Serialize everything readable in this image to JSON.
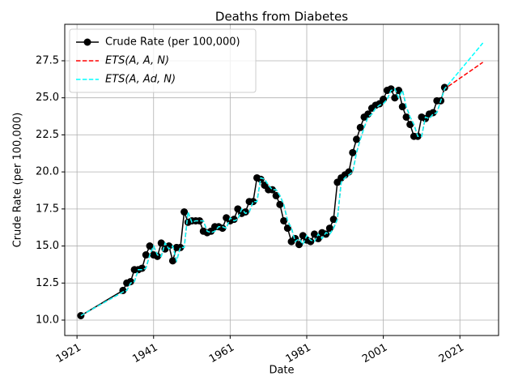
{
  "chart_data": {
    "type": "line",
    "title": "Deaths from Diabetes",
    "x_label": "Date",
    "y_label": "Crude Rate (per 100,000)",
    "x": [
      1922,
      1933,
      1934,
      1935,
      1936,
      1937,
      1938,
      1939,
      1940,
      1941,
      1942,
      1943,
      1944,
      1945,
      1946,
      1947,
      1948,
      1949,
      1950,
      1951,
      1952,
      1953,
      1954,
      1955,
      1956,
      1957,
      1958,
      1959,
      1960,
      1961,
      1962,
      1963,
      1964,
      1965,
      1966,
      1967,
      1968,
      1969,
      1970,
      1971,
      1972,
      1973,
      1974,
      1975,
      1976,
      1977,
      1978,
      1979,
      1980,
      1981,
      1982,
      1983,
      1984,
      1985,
      1986,
      1987,
      1988,
      1989,
      1990,
      1991,
      1992,
      1993,
      1994,
      1995,
      1996,
      1997,
      1998,
      1999,
      2000,
      2001,
      2002,
      2003,
      2004,
      2005,
      2006,
      2007,
      2008,
      2009,
      2010,
      2011,
      2012,
      2013,
      2014,
      2015,
      2016,
      2017,
      2027
    ],
    "series": [
      {
        "name": "Crude Rate (per 100,000)",
        "color": "#000000",
        "style": "solid",
        "markers": true,
        "values": [
          10.3,
          12.0,
          12.5,
          12.6,
          13.4,
          13.4,
          13.5,
          14.4,
          15.0,
          14.4,
          14.3,
          15.2,
          14.8,
          15.0,
          14.0,
          14.9,
          14.9,
          17.3,
          16.6,
          16.7,
          16.7,
          16.7,
          16.0,
          15.9,
          16.0,
          16.3,
          16.3,
          16.2,
          16.9,
          16.7,
          16.8,
          17.5,
          17.2,
          17.3,
          18.0,
          18.0,
          19.6,
          19.5,
          19.1,
          18.8,
          18.8,
          18.4,
          17.8,
          16.7,
          16.2,
          15.3,
          15.5,
          15.1,
          15.7,
          15.4,
          15.3,
          15.8,
          15.5,
          15.9,
          15.8,
          16.2,
          16.8,
          19.3,
          19.6,
          19.8,
          20.0,
          21.3,
          22.2,
          23.0,
          23.7,
          23.9,
          24.3,
          24.5,
          24.6,
          24.9,
          25.5,
          25.6,
          25.0,
          25.5,
          24.4,
          23.7,
          23.2,
          22.4,
          22.4,
          23.7,
          23.6,
          23.9,
          24.0,
          24.8,
          24.8,
          25.7,
          null
        ]
      },
      {
        "name": "ETS(A, A, N)",
        "color": "#ff0000",
        "style": "dashed",
        "markers": false,
        "values": [
          10.3,
          11.9,
          12.0,
          12.5,
          12.6,
          13.4,
          13.4,
          13.5,
          14.4,
          15.0,
          14.4,
          14.3,
          15.2,
          14.8,
          15.0,
          14.0,
          14.9,
          14.9,
          17.3,
          16.6,
          16.7,
          16.7,
          16.7,
          16.0,
          15.9,
          16.0,
          16.3,
          16.3,
          16.2,
          16.9,
          16.7,
          16.8,
          17.5,
          17.2,
          17.3,
          18.0,
          18.0,
          19.6,
          19.5,
          19.1,
          18.8,
          18.8,
          18.4,
          17.8,
          16.7,
          16.2,
          15.3,
          15.5,
          15.1,
          15.7,
          15.4,
          15.3,
          15.8,
          15.5,
          15.9,
          15.8,
          16.2,
          16.8,
          19.3,
          19.6,
          19.8,
          20.0,
          21.3,
          22.2,
          23.0,
          23.7,
          23.9,
          24.3,
          24.5,
          24.6,
          24.9,
          25.5,
          25.6,
          25.0,
          25.5,
          24.4,
          23.7,
          23.2,
          22.4,
          22.4,
          23.7,
          23.6,
          23.9,
          24.0,
          24.8,
          25.6,
          27.4
        ]
      },
      {
        "name": "ETS(A, Ad, N)",
        "color": "#00ffff",
        "style": "dashed",
        "markers": false,
        "values": [
          10.3,
          11.9,
          12.0,
          12.5,
          12.6,
          13.4,
          13.4,
          13.5,
          14.4,
          15.0,
          14.4,
          14.3,
          15.2,
          14.8,
          15.0,
          14.0,
          14.9,
          14.9,
          17.3,
          16.6,
          16.7,
          16.7,
          16.7,
          16.0,
          15.9,
          16.0,
          16.3,
          16.3,
          16.2,
          16.9,
          16.7,
          16.8,
          17.5,
          17.2,
          17.3,
          18.0,
          18.0,
          19.6,
          19.5,
          19.1,
          18.8,
          18.8,
          18.4,
          17.8,
          16.7,
          16.2,
          15.3,
          15.5,
          15.1,
          15.7,
          15.4,
          15.3,
          15.8,
          15.5,
          15.9,
          15.8,
          16.2,
          16.8,
          19.3,
          19.6,
          19.8,
          20.0,
          21.3,
          22.2,
          23.0,
          23.7,
          23.9,
          24.3,
          24.5,
          24.6,
          24.9,
          25.5,
          25.6,
          25.0,
          25.5,
          24.4,
          23.7,
          23.2,
          22.4,
          22.4,
          23.7,
          23.6,
          23.9,
          24.0,
          24.8,
          25.6,
          28.7
        ]
      }
    ],
    "xlim": [
      1917.8,
      2031.1
    ],
    "xticks": [
      1921,
      1941,
      1961,
      1981,
      2001,
      2021
    ],
    "ylim": [
      8.96,
      29.96
    ],
    "yticks": [
      {
        "value": 10,
        "label": "10.0"
      },
      12.5,
      {
        "value": 15,
        "label": "15.0"
      },
      17.5,
      {
        "value": 20,
        "label": "20.0"
      },
      22.5,
      {
        "value": 25,
        "label": "25.0"
      },
      27.5
    ],
    "grid": true,
    "legend": "upper left"
  }
}
